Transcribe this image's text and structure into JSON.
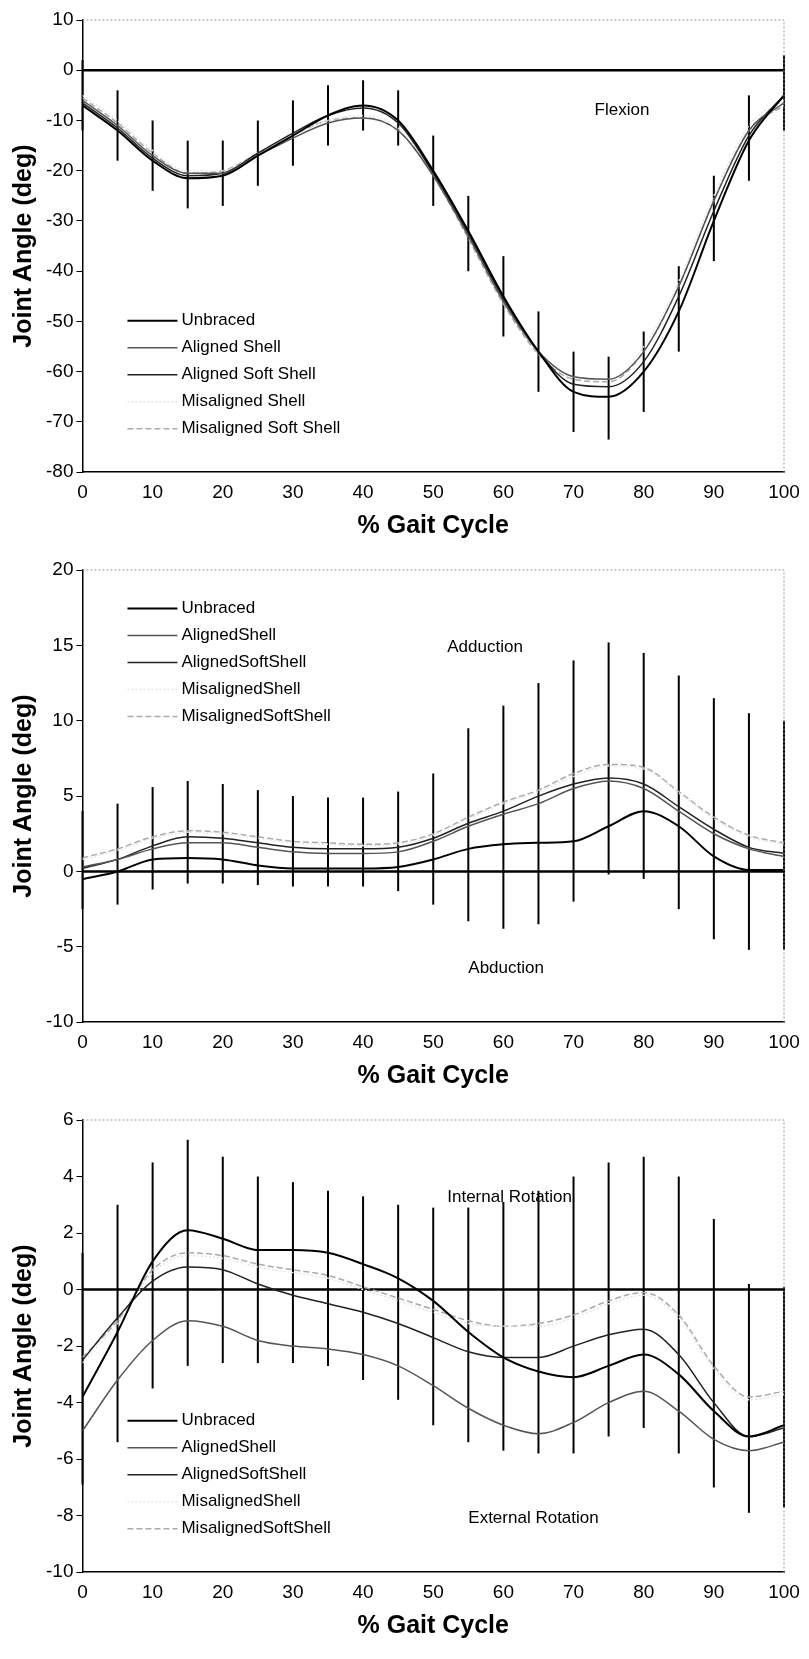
{
  "chart_data": [
    {
      "type": "line",
      "xlabel": "% Gait Cycle",
      "ylabel": "Joint Angle (deg)",
      "x": [
        0,
        5,
        10,
        15,
        20,
        25,
        30,
        35,
        40,
        45,
        50,
        55,
        60,
        65,
        70,
        75,
        80,
        85,
        90,
        95,
        100
      ],
      "xlim": [
        0,
        100
      ],
      "xticks": [
        0,
        10,
        20,
        30,
        40,
        50,
        60,
        70,
        80,
        90,
        100
      ],
      "ylim": [
        -80,
        10
      ],
      "yticks": [
        -80,
        -70,
        -60,
        -50,
        -40,
        -30,
        -20,
        -10,
        0,
        10
      ],
      "grid": false,
      "legend": "bottom left",
      "marker": "none",
      "ref_lines": [
        {
          "axis": "y",
          "value": 0,
          "color": "#000000"
        }
      ],
      "annotations": [
        "Flexion"
      ],
      "series": [
        {
          "name": "Unbraced",
          "color": "#000000",
          "line_style": "solid",
          "values": [
            -7,
            -12,
            -18,
            -21.5,
            -21,
            -17,
            -13,
            -9,
            -7,
            -10,
            -20,
            -32,
            -45,
            -56,
            -64,
            -65,
            -60,
            -48,
            -30,
            -14,
            -5
          ],
          "errors": [
            [
              -12,
              2
            ],
            [
              -18,
              -4
            ],
            [
              -24,
              -10
            ],
            [
              -27.5,
              -14
            ],
            [
              -27,
              -14
            ],
            [
              -23,
              -10
            ],
            [
              -19,
              -6
            ],
            [
              -15,
              -3
            ],
            [
              -12,
              -2
            ],
            [
              -15,
              -4
            ],
            [
              -27,
              -13
            ],
            [
              -40,
              -25
            ],
            [
              -53,
              -37
            ],
            [
              -64,
              -48
            ],
            [
              -72,
              -56
            ],
            [
              -73.5,
              -57
            ],
            [
              -68,
              -52
            ],
            [
              -56,
              -39
            ],
            [
              -38,
              -21
            ],
            [
              -22,
              -5
            ],
            [
              -12,
              3
            ]
          ]
        },
        {
          "name": "Aligned Shell",
          "color": "#555555",
          "line_style": "solid",
          "values": [
            -6,
            -11,
            -17,
            -20.5,
            -20.5,
            -17,
            -13.5,
            -10.5,
            -9.5,
            -12,
            -21,
            -33,
            -46,
            -56,
            -61,
            -61.5,
            -56,
            -43,
            -26,
            -12,
            -6.5
          ]
        },
        {
          "name": "Aligned Soft Shell",
          "color": "#222222",
          "line_style": "solid",
          "values": [
            -6.5,
            -11.5,
            -17.5,
            -21,
            -20.5,
            -16.5,
            -12.5,
            -9,
            -7.5,
            -10.5,
            -20.5,
            -32.5,
            -45.5,
            -56,
            -62.5,
            -63,
            -58,
            -45,
            -28,
            -13,
            -5
          ]
        },
        {
          "name": "Misaligned Shell",
          "color": "#e6e6e6",
          "line_style": "dotted",
          "values": [
            -5,
            -10,
            -16,
            -20,
            -20,
            -16.5,
            -13,
            -10,
            -9,
            -11.5,
            -20.5,
            -33,
            -46,
            -56,
            -61,
            -61.5,
            -55,
            -42,
            -25,
            -11,
            -6
          ]
        },
        {
          "name": "Misaligned Soft Shell",
          "color": "#aaaaaa",
          "line_style": "dashed",
          "values": [
            -5.5,
            -10.5,
            -16.5,
            -20.5,
            -20,
            -16.5,
            -13,
            -10,
            -9.5,
            -12,
            -21,
            -33.5,
            -46.5,
            -56.5,
            -61.5,
            -62,
            -56,
            -43,
            -26,
            -12,
            -7
          ]
        }
      ]
    },
    {
      "type": "line",
      "xlabel": "% Gait Cycle",
      "ylabel": "Joint Angle (deg)",
      "x": [
        0,
        5,
        10,
        15,
        20,
        25,
        30,
        35,
        40,
        45,
        50,
        55,
        60,
        65,
        70,
        75,
        80,
        85,
        90,
        95,
        100
      ],
      "xlim": [
        0,
        100
      ],
      "xticks": [
        0,
        10,
        20,
        30,
        40,
        50,
        60,
        70,
        80,
        90,
        100
      ],
      "ylim": [
        -10,
        20
      ],
      "yticks": [
        -10,
        -5,
        0,
        5,
        10,
        15,
        20
      ],
      "grid": false,
      "legend": "top left",
      "marker": "none",
      "ref_lines": [
        {
          "axis": "y",
          "value": 0,
          "color": "#000000"
        }
      ],
      "annotations": [
        "Adduction",
        "Abduction"
      ],
      "series": [
        {
          "name": "Unbraced",
          "color": "#000000",
          "line_style": "solid",
          "values": [
            -0.5,
            0,
            0.8,
            0.9,
            0.8,
            0.4,
            0.2,
            0.2,
            0.2,
            0.3,
            0.8,
            1.5,
            1.8,
            1.9,
            2,
            3,
            4,
            3,
            1,
            0.1,
            0.1
          ],
          "errors": [
            [
              -2.5,
              4
            ],
            [
              -2.2,
              4.5
            ],
            [
              -1.2,
              5.6
            ],
            [
              -0.8,
              6
            ],
            [
              -0.8,
              5.8
            ],
            [
              -0.9,
              5.4
            ],
            [
              -1,
              5
            ],
            [
              -1,
              4.9
            ],
            [
              -1,
              4.9
            ],
            [
              -1.3,
              5.3
            ],
            [
              -2.2,
              6.5
            ],
            [
              -3.3,
              9.5
            ],
            [
              -3.8,
              11
            ],
            [
              -3.5,
              12.5
            ],
            [
              -2,
              14
            ],
            [
              -0.2,
              15.2
            ],
            [
              -0.5,
              14.5
            ],
            [
              -2.5,
              13
            ],
            [
              -4.5,
              11.5
            ],
            [
              -5.2,
              10.5
            ],
            [
              -5.2,
              10
            ]
          ]
        },
        {
          "name": "AlignedShell",
          "color": "#555555",
          "line_style": "solid",
          "values": [
            0.3,
            0.8,
            1.5,
            1.9,
            1.9,
            1.6,
            1.3,
            1.2,
            1.2,
            1.3,
            2,
            3,
            3.8,
            4.5,
            5.5,
            6,
            5.5,
            4,
            2.5,
            1.5,
            1
          ]
        },
        {
          "name": "AlignedSoftShell",
          "color": "#222222",
          "line_style": "solid",
          "values": [
            0.2,
            0.8,
            1.7,
            2.3,
            2.2,
            1.9,
            1.6,
            1.5,
            1.5,
            1.6,
            2.2,
            3.2,
            4,
            5,
            5.8,
            6.2,
            5.8,
            4.3,
            2.8,
            1.6,
            1.2
          ]
        },
        {
          "name": "MisalignedShell",
          "color": "#e6e6e6",
          "line_style": "dotted",
          "values": [
            0.8,
            1.4,
            2.2,
            2.6,
            2.5,
            2.2,
            1.9,
            1.8,
            1.7,
            1.8,
            2.4,
            3.5,
            4.5,
            5.3,
            6.3,
            7,
            6.8,
            5.2,
            3.5,
            2.3,
            1.8
          ]
        },
        {
          "name": "MisalignedSoftShell",
          "color": "#aaaaaa",
          "line_style": "dashed",
          "values": [
            0.9,
            1.5,
            2.3,
            2.7,
            2.6,
            2.3,
            2,
            1.9,
            1.8,
            1.9,
            2.5,
            3.6,
            4.6,
            5.4,
            6.5,
            7.1,
            6.9,
            5.3,
            3.6,
            2.4,
            1.9
          ]
        }
      ]
    },
    {
      "type": "line",
      "xlabel": "% Gait Cycle",
      "ylabel": "Joint Angle (deg)",
      "x": [
        0,
        5,
        10,
        15,
        20,
        25,
        30,
        35,
        40,
        45,
        50,
        55,
        60,
        65,
        70,
        75,
        80,
        85,
        90,
        95,
        100
      ],
      "xlim": [
        0,
        100
      ],
      "xticks": [
        0,
        10,
        20,
        30,
        40,
        50,
        60,
        70,
        80,
        90,
        100
      ],
      "ylim": [
        -10,
        6
      ],
      "yticks": [
        -10,
        -8,
        -6,
        -4,
        -2,
        0,
        2,
        4,
        6
      ],
      "grid": false,
      "legend": "bottom left",
      "marker": "none",
      "ref_lines": [
        {
          "axis": "y",
          "value": 0,
          "color": "#000000"
        }
      ],
      "annotations": [
        "Internal Rotation",
        "External Rotation"
      ],
      "series": [
        {
          "name": "Unbraced",
          "color": "#000000",
          "line_style": "solid",
          "values": [
            -3.8,
            -1.5,
            1,
            2.1,
            1.8,
            1.4,
            1.4,
            1.3,
            0.9,
            0.4,
            -0.4,
            -1.5,
            -2.4,
            -2.9,
            -3.1,
            -2.7,
            -2.3,
            -3,
            -4.3,
            -5.2,
            -4.8
          ],
          "errors": [
            [
              -6.9,
              1.3
            ],
            [
              -5.4,
              3
            ],
            [
              -3.5,
              4.5
            ],
            [
              -2.7,
              5.3
            ],
            [
              -2.6,
              4.7
            ],
            [
              -2.6,
              4
            ],
            [
              -2.6,
              3.8
            ],
            [
              -2.7,
              3.5
            ],
            [
              -3.2,
              3.3
            ],
            [
              -3.9,
              3
            ],
            [
              -4.8,
              2.9
            ],
            [
              -5.4,
              2.9
            ],
            [
              -5.7,
              3.1
            ],
            [
              -5.8,
              3.5
            ],
            [
              -5.8,
              4
            ],
            [
              -5.2,
              4.5
            ],
            [
              -4.9,
              4.7
            ],
            [
              -5.8,
              4
            ],
            [
              -7,
              2.5
            ],
            [
              -7.9,
              0.2
            ],
            [
              -7.7,
              0.1
            ]
          ]
        },
        {
          "name": "AlignedShell",
          "color": "#555555",
          "line_style": "solid",
          "values": [
            -5,
            -3.2,
            -1.8,
            -1.1,
            -1.3,
            -1.8,
            -2,
            -2.1,
            -2.3,
            -2.7,
            -3.4,
            -4.2,
            -4.8,
            -5.1,
            -4.7,
            -4,
            -3.6,
            -4.3,
            -5.3,
            -5.7,
            -5.4
          ]
        },
        {
          "name": "AlignedSoftShell",
          "color": "#222222",
          "line_style": "solid",
          "values": [
            -2.5,
            -1,
            0.3,
            0.8,
            0.7,
            0.2,
            -0.2,
            -0.5,
            -0.8,
            -1.2,
            -1.7,
            -2.2,
            -2.4,
            -2.4,
            -2,
            -1.6,
            -1.4,
            -2.3,
            -4,
            -5.2,
            -4.9
          ]
        },
        {
          "name": "MisalignedShell",
          "color": "#e6e6e6",
          "line_style": "dotted",
          "values": [
            -2.6,
            -1.2,
            0.6,
            1.2,
            1.1,
            0.8,
            0.6,
            0.4,
            0,
            -0.4,
            -0.8,
            -1.2,
            -1.3,
            -1.3,
            -1,
            -0.5,
            -0.2,
            -1,
            -2.8,
            -3.9,
            -3.7
          ]
        },
        {
          "name": "MisalignedSoftShell",
          "color": "#aaaaaa",
          "line_style": "dashed",
          "values": [
            -2.4,
            -1.1,
            0.7,
            1.3,
            1.2,
            0.9,
            0.7,
            0.5,
            0.1,
            -0.3,
            -0.7,
            -1.1,
            -1.3,
            -1.2,
            -0.9,
            -0.4,
            -0.1,
            -0.9,
            -2.7,
            -3.8,
            -3.6
          ]
        }
      ]
    }
  ]
}
